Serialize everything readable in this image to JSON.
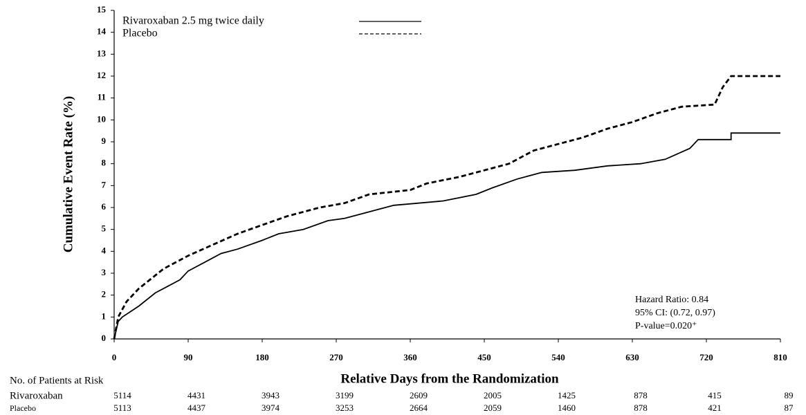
{
  "chart_data": {
    "type": "line",
    "step": true,
    "y_label": "Cumulative Event Rate (%)",
    "x_label": "Relative Days from the Randomization",
    "xlim": [
      0,
      810
    ],
    "xticks": [
      0,
      90,
      180,
      270,
      360,
      450,
      540,
      630,
      720,
      810
    ],
    "ylim": [
      0,
      15
    ],
    "yticks": [
      0,
      1,
      2,
      3,
      4,
      5,
      6,
      7,
      8,
      9,
      10,
      11,
      12,
      13,
      14,
      15
    ],
    "grid": false,
    "legend": "upper left",
    "series": [
      {
        "name": "Rivaroxaban 2.5 mg twice daily",
        "color": "#000000",
        "line_style": "solid",
        "x": [
          0,
          5,
          10,
          30,
          50,
          60,
          80,
          90,
          110,
          130,
          150,
          180,
          200,
          230,
          260,
          280,
          310,
          340,
          370,
          400,
          440,
          460,
          490,
          520,
          560,
          600,
          640,
          670,
          700,
          710,
          750,
          750,
          810
        ],
        "values": [
          0,
          0.8,
          1.0,
          1.5,
          2.1,
          2.3,
          2.7,
          3.1,
          3.5,
          3.9,
          4.1,
          4.5,
          4.8,
          5.0,
          5.4,
          5.5,
          5.8,
          6.1,
          6.2,
          6.3,
          6.6,
          6.9,
          7.3,
          7.6,
          7.7,
          7.9,
          8.0,
          8.2,
          8.7,
          9.1,
          9.1,
          9.4,
          9.4
        ]
      },
      {
        "name": "Placebo",
        "color": "#000000",
        "line_style": "dashed",
        "x": [
          0,
          5,
          15,
          30,
          60,
          90,
          120,
          150,
          180,
          210,
          250,
          280,
          310,
          360,
          380,
          420,
          450,
          480,
          510,
          540,
          570,
          600,
          630,
          660,
          690,
          730,
          740,
          750,
          810
        ],
        "values": [
          0,
          1.0,
          1.7,
          2.3,
          3.2,
          3.8,
          4.3,
          4.8,
          5.2,
          5.6,
          6.0,
          6.2,
          6.6,
          6.8,
          7.1,
          7.4,
          7.7,
          8.0,
          8.6,
          8.9,
          9.2,
          9.6,
          9.9,
          10.3,
          10.6,
          10.7,
          11.5,
          12.0,
          12.0
        ]
      }
    ],
    "annotations": [
      "Hazard Ratio: 0.84",
      "95% CI: (0.72, 0.97)",
      "P-value=0.020⁺"
    ],
    "risk_table": {
      "title": "No. of Patients at Risk",
      "rows": [
        {
          "label": "Rivaroxaban",
          "values": [
            5114,
            4431,
            3943,
            3199,
            2609,
            2005,
            1425,
            878,
            415,
            89
          ]
        },
        {
          "label": "Placebo",
          "values": [
            5113,
            4437,
            3974,
            3253,
            2664,
            2059,
            1460,
            878,
            421,
            87
          ]
        }
      ]
    }
  }
}
